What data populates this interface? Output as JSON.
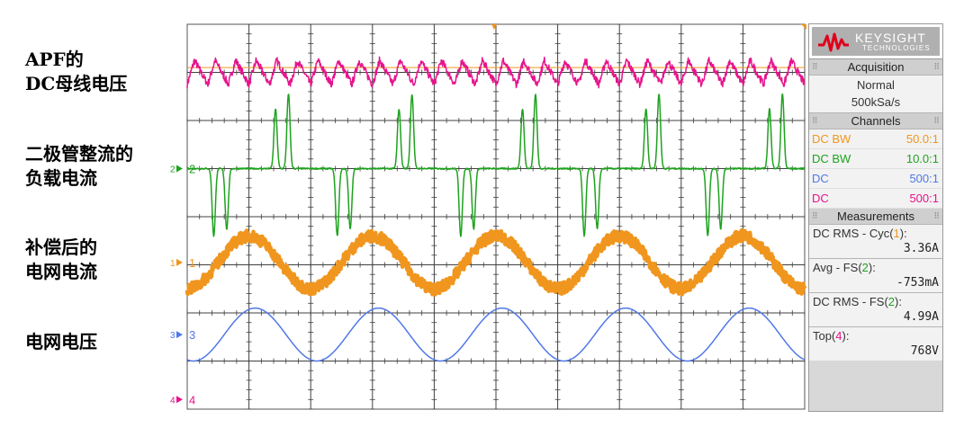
{
  "annotations": [
    {
      "line1": "APF的",
      "line2": "DC母线电压"
    },
    {
      "line1": "二极管整流的",
      "line2": "负载电流"
    },
    {
      "line1": "补偿后的",
      "line2": "电网电流"
    },
    {
      "line1": "电网电压",
      "line2": ""
    }
  ],
  "panel": {
    "logo": {
      "brand": "KEYSIGHT",
      "sub": "TECHNOLOGIES"
    },
    "acquisition": {
      "title": "Acquisition",
      "mode": "Normal",
      "rate": "500kSa/s"
    },
    "channels": {
      "title": "Channels",
      "rows": [
        {
          "coupling": "DC BW",
          "probe": "50.0:1",
          "color": "#f0961e"
        },
        {
          "coupling": "DC BW",
          "probe": "10.0:1",
          "color": "#1fa21f"
        },
        {
          "coupling": "DC",
          "probe": "500:1",
          "color": "#5078e6"
        },
        {
          "coupling": "DC",
          "probe": "500:1",
          "color": "#e6148c"
        }
      ]
    },
    "measurements": {
      "title": "Measurements",
      "items": [
        {
          "pre": "DC RMS - Cyc(",
          "ch": "1",
          "post": "):",
          "value": "3.36A",
          "color": "#f0961e"
        },
        {
          "pre": "Avg - FS(",
          "ch": "2",
          "post": "):",
          "value": "-753mA",
          "color": "#1fa21f"
        },
        {
          "pre": "DC RMS - FS(",
          "ch": "2",
          "post": "):",
          "value": "4.99A",
          "color": "#1fa21f"
        },
        {
          "pre": "Top(",
          "ch": "4",
          "post": "):",
          "value": "768V",
          "color": "#e6148c"
        }
      ]
    }
  },
  "chart_data": {
    "type": "line",
    "grid": {
      "divisions_x": 10,
      "divisions_y": 8
    },
    "x_range_div": [
      0,
      10
    ],
    "y_range_div": [
      0,
      8
    ],
    "series": [
      {
        "ch": "4",
        "color": "#e6148c",
        "shape": "ripple",
        "baseline_div": 7.0,
        "amplitude_div": 0.25,
        "cycles": 30,
        "noise_div": 0.08,
        "marker_label": "4",
        "marker_div": 0.2
      },
      {
        "ch": "2",
        "color": "#1fa21f",
        "shape": "rectifier-pulses",
        "baseline_div": 5.0,
        "pos_peak_div": 1.55,
        "neg_peak_div": -1.4,
        "cycles": 5,
        "phase_div": 1.05,
        "marker_label": "2",
        "marker_div": 5.0
      },
      {
        "ch": "1",
        "color": "#f0961e",
        "shape": "sine-noisy",
        "baseline_div": 3.05,
        "amplitude_div": 0.55,
        "cycles": 5,
        "phase_div": 0.0,
        "noise_div": 0.12,
        "thick": true,
        "marker_label": "1",
        "marker_div": 3.05
      },
      {
        "ch": "3",
        "color": "#5078e6",
        "shape": "sine",
        "baseline_div": 1.55,
        "amplitude_div": 0.55,
        "cycles": 5,
        "phase_div": 0.1,
        "marker_label": "3",
        "marker_div": 1.55
      }
    ],
    "ref_line": {
      "color": "#f0961e",
      "level_div": 7.1
    }
  }
}
